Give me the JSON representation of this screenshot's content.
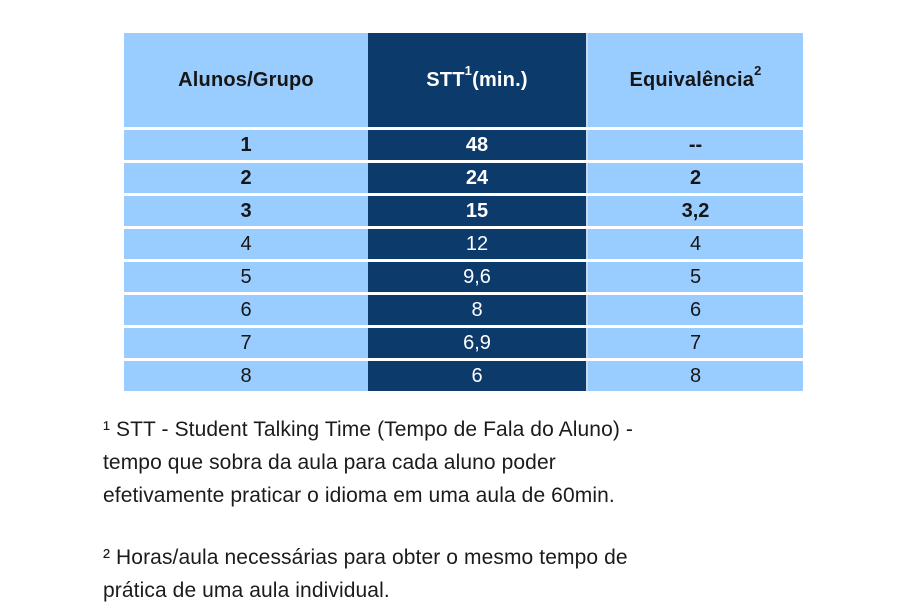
{
  "chart_data": {
    "type": "table",
    "title": "",
    "columns": [
      "Alunos/Grupo",
      "STT¹ (min.)",
      "Equivalência²"
    ],
    "rows": [
      [
        "1",
        "48",
        "--"
      ],
      [
        "2",
        "24",
        "2"
      ],
      [
        "3",
        "15",
        "3,2"
      ],
      [
        "4",
        "12",
        "4"
      ],
      [
        "5",
        "9,6",
        "5"
      ],
      [
        "6",
        "8",
        "6"
      ],
      [
        "7",
        "6,9",
        "7"
      ],
      [
        "8",
        "6",
        "8"
      ]
    ],
    "layout_hints": {
      "highlighted_column": "STT¹ (min.)",
      "bold_rows": [
        1,
        2,
        3
      ]
    }
  },
  "table": {
    "header": {
      "col1": "Alunos/Grupo",
      "col2_base": "STT",
      "col2_sup": "1",
      "col2_suffix": " (min.)",
      "col3_base": "Equivalência",
      "col3_sup": "2"
    }
  },
  "footnotes": {
    "note1": {
      "line1": "¹ STT - Student Talking Time (Tempo de Fala do Aluno) -",
      "line2": "tempo que sobra da aula para cada aluno poder",
      "line3": "efetivamente praticar o idioma em uma aula de 60min."
    },
    "note2": {
      "line1": "² Horas/aula necessárias para obter o mesmo tempo de",
      "line2": "prática de uma aula individual."
    }
  },
  "colors": {
    "cell_light_blue": "#99CCFF",
    "column_dark_navy": "#0B3A6B",
    "header_text_dark": "#161616",
    "column_text_white": "#ffffff",
    "page_background": "#ffffff"
  }
}
